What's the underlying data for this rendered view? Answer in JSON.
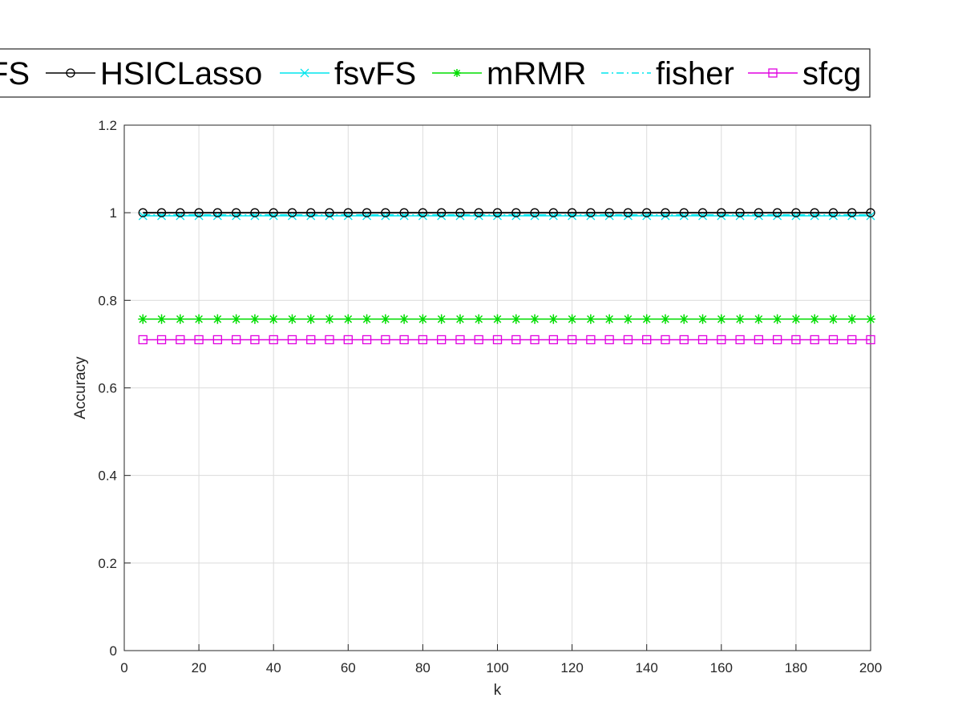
{
  "chart_data": {
    "type": "line",
    "title": "",
    "xlabel": "k",
    "ylabel": "Accuracy",
    "xlim": [
      0,
      200
    ],
    "ylim": [
      0,
      1.2
    ],
    "xticks": [
      0,
      20,
      40,
      60,
      80,
      100,
      120,
      140,
      160,
      180,
      200
    ],
    "yticks": [
      0,
      0.2,
      0.4,
      0.6,
      0.8,
      1,
      1.2
    ],
    "xtick_labels": [
      "0",
      "20",
      "40",
      "60",
      "80",
      "100",
      "120",
      "140",
      "160",
      "180",
      "200"
    ],
    "ytick_labels": [
      "0",
      "0.2",
      "0.4",
      "0.6",
      "0.8",
      "1",
      "1.2"
    ],
    "grid": true,
    "legend_position": "top, outside plot",
    "legend_partial_label": "FS",
    "x": [
      5,
      10,
      15,
      20,
      25,
      30,
      35,
      40,
      45,
      50,
      55,
      60,
      65,
      70,
      75,
      80,
      85,
      90,
      95,
      100,
      105,
      110,
      115,
      120,
      125,
      130,
      135,
      140,
      145,
      150,
      155,
      160,
      165,
      170,
      175,
      180,
      185,
      190,
      195,
      200
    ],
    "series": [
      {
        "name": "HSICLasso",
        "value": 1.0,
        "color": "#000000",
        "marker": "circle",
        "dash": "solid"
      },
      {
        "name": "fsvFS",
        "value": 0.993,
        "color": "#00e5ee",
        "marker": "x",
        "dash": "solid"
      },
      {
        "name": "mRMR",
        "value": 0.757,
        "color": "#00dd00",
        "marker": "asterisk",
        "dash": "solid"
      },
      {
        "name": "fisher",
        "value": 0.995,
        "color": "#00e5ee",
        "marker": "none",
        "dash": "dashdot"
      },
      {
        "name": "sfcg",
        "value": 0.71,
        "color": "#e000e0",
        "marker": "square",
        "dash": "solid"
      }
    ]
  }
}
